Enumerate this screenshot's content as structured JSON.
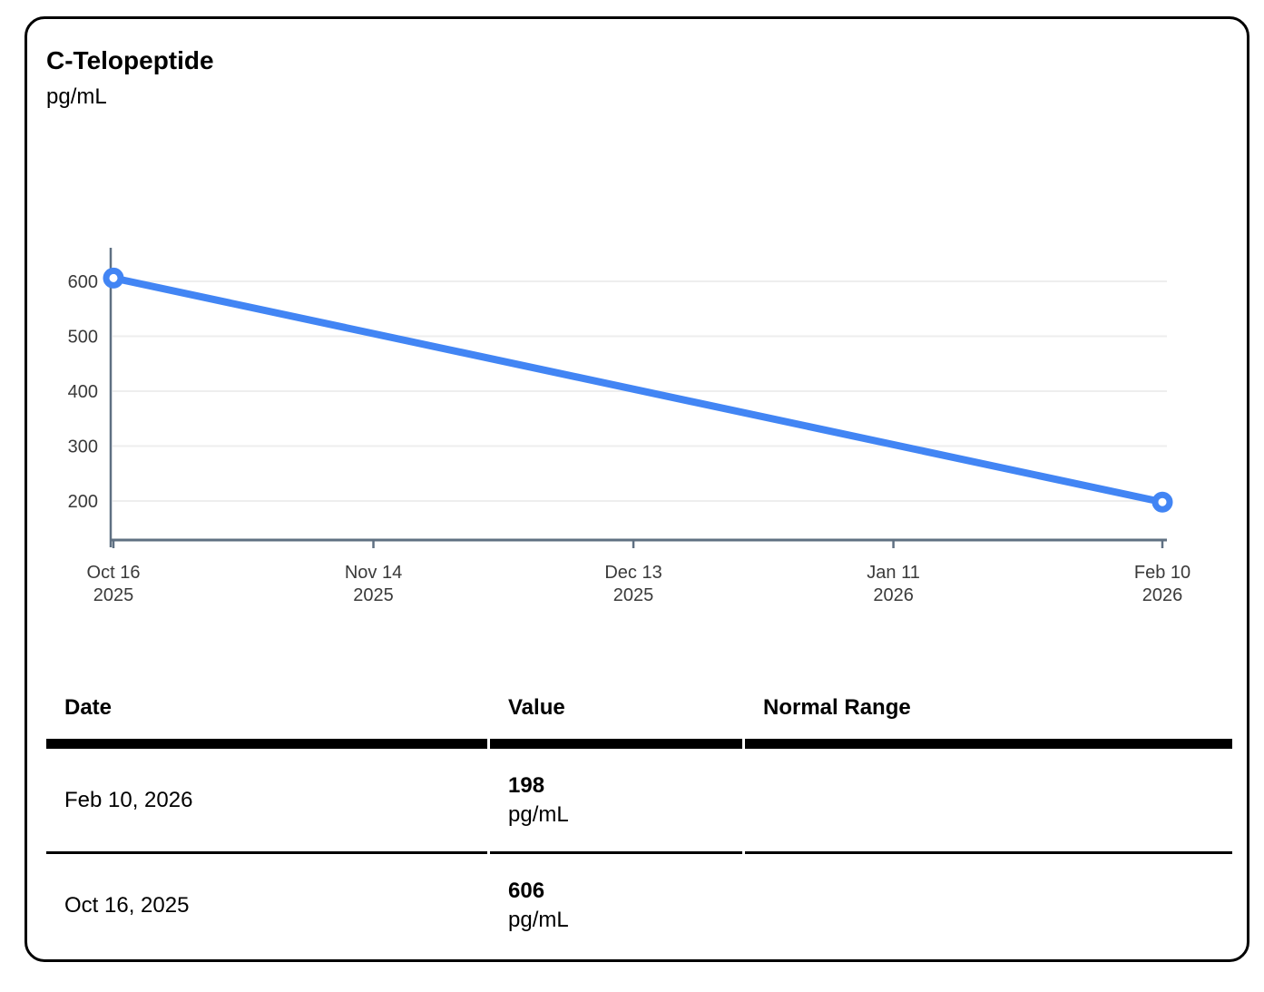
{
  "header": {
    "title": "C-Telopeptide",
    "unit": "pg/mL"
  },
  "chart_data": {
    "type": "line",
    "title": "C-Telopeptide",
    "ylabel": "pg/mL",
    "grid": true,
    "legend": "none",
    "ylim": [
      129,
      661
    ],
    "y_ticks": [
      200,
      300,
      400,
      500,
      600
    ],
    "x_ticks": [
      {
        "line1": "Oct 16",
        "line2": "2025",
        "day": 0
      },
      {
        "line1": "Nov 14",
        "line2": "2025",
        "day": 29
      },
      {
        "line1": "Dec 13",
        "line2": "2025",
        "day": 58
      },
      {
        "line1": "Jan 11",
        "line2": "2026",
        "day": 87
      },
      {
        "line1": "Feb 10",
        "line2": "2026",
        "day": 117
      }
    ],
    "series": [
      {
        "name": "C-Telopeptide",
        "points": [
          {
            "date": "Oct 16, 2025",
            "day": 0,
            "value": 606
          },
          {
            "date": "Feb 10, 2026",
            "day": 117,
            "value": 198
          }
        ]
      }
    ],
    "colors": {
      "line": "#4285f4",
      "marker_fill": "#ffffff",
      "axis": "#5f7082",
      "grid": "#eeeeee",
      "tick_label": "#3a3a3a"
    }
  },
  "table": {
    "headers": [
      "Date",
      "Value",
      "Normal Range"
    ],
    "rows": [
      {
        "date": "Feb 10, 2026",
        "value": "198",
        "unit": "pg/mL",
        "normal_range": ""
      },
      {
        "date": "Oct 16, 2025",
        "value": "606",
        "unit": "pg/mL",
        "normal_range": ""
      }
    ]
  }
}
